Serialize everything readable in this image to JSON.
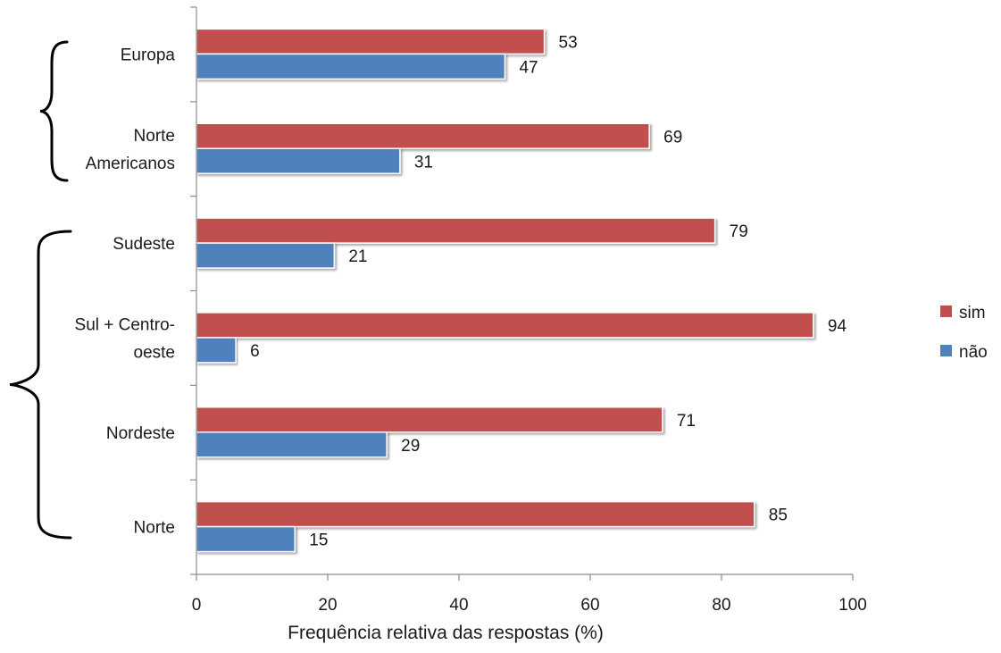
{
  "chart_data": {
    "type": "bar",
    "orientation": "horizontal",
    "xlabel": "Frequência relativa das respostas (%)",
    "xlim": [
      0,
      100
    ],
    "xticks": [
      0,
      20,
      40,
      60,
      80,
      100
    ],
    "grid": false,
    "legend_position": "right",
    "categories": [
      [
        "Europa"
      ],
      [
        "Norte",
        "Americanos"
      ],
      [
        "Sudeste"
      ],
      [
        "Sul + Centro-",
        "oeste"
      ],
      [
        "Nordeste"
      ],
      [
        "Norte"
      ]
    ],
    "series": [
      {
        "name": "sim",
        "color": "#c0504d",
        "values": [
          53,
          69,
          79,
          94,
          71,
          85
        ]
      },
      {
        "name": "não",
        "color": "#4f81bd",
        "values": [
          47,
          31,
          21,
          6,
          29,
          15
        ]
      }
    ],
    "groups": [
      {
        "categories": [
          0,
          1
        ]
      },
      {
        "categories": [
          2,
          3,
          4,
          5
        ]
      }
    ]
  }
}
